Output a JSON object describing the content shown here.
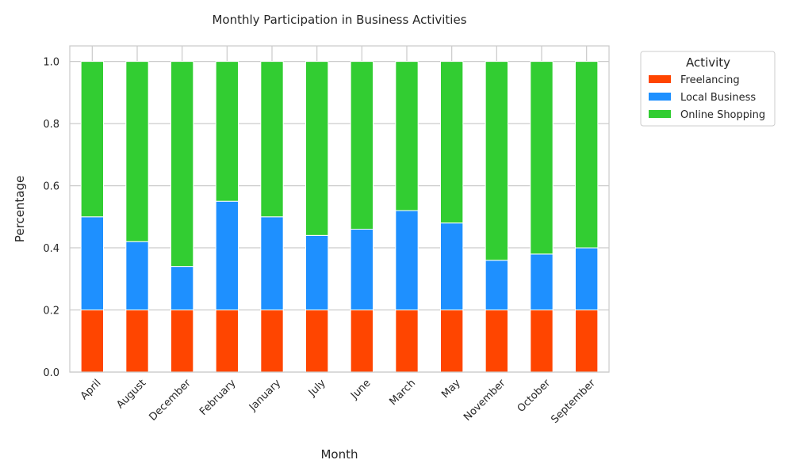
{
  "chart_data": {
    "type": "bar",
    "stacked": true,
    "title": "Monthly Participation in Business Activities",
    "xlabel": "Month",
    "ylabel": "Percentage",
    "ylim": [
      0,
      1.05
    ],
    "yticks": [
      "0.0",
      "0.2",
      "0.4",
      "0.6",
      "0.8",
      "1.0"
    ],
    "grid": true,
    "legend": {
      "title": "Activity",
      "placement": "outside-top-right"
    },
    "categories": [
      "April",
      "August",
      "December",
      "February",
      "January",
      "July",
      "June",
      "March",
      "May",
      "November",
      "October",
      "September"
    ],
    "series": [
      {
        "name": "Freelancing",
        "color": "#FF4500",
        "values": [
          0.2,
          0.2,
          0.2,
          0.2,
          0.2,
          0.2,
          0.2,
          0.2,
          0.2,
          0.2,
          0.2,
          0.2
        ]
      },
      {
        "name": "Local Business",
        "color": "#1E90FF",
        "values": [
          0.3,
          0.22,
          0.14,
          0.35,
          0.3,
          0.24,
          0.26,
          0.32,
          0.28,
          0.16,
          0.18,
          0.2
        ]
      },
      {
        "name": "Online Shopping",
        "color": "#32CD32",
        "values": [
          0.5,
          0.58,
          0.66,
          0.45,
          0.5,
          0.56,
          0.54,
          0.48,
          0.52,
          0.64,
          0.62,
          0.6
        ]
      }
    ]
  }
}
